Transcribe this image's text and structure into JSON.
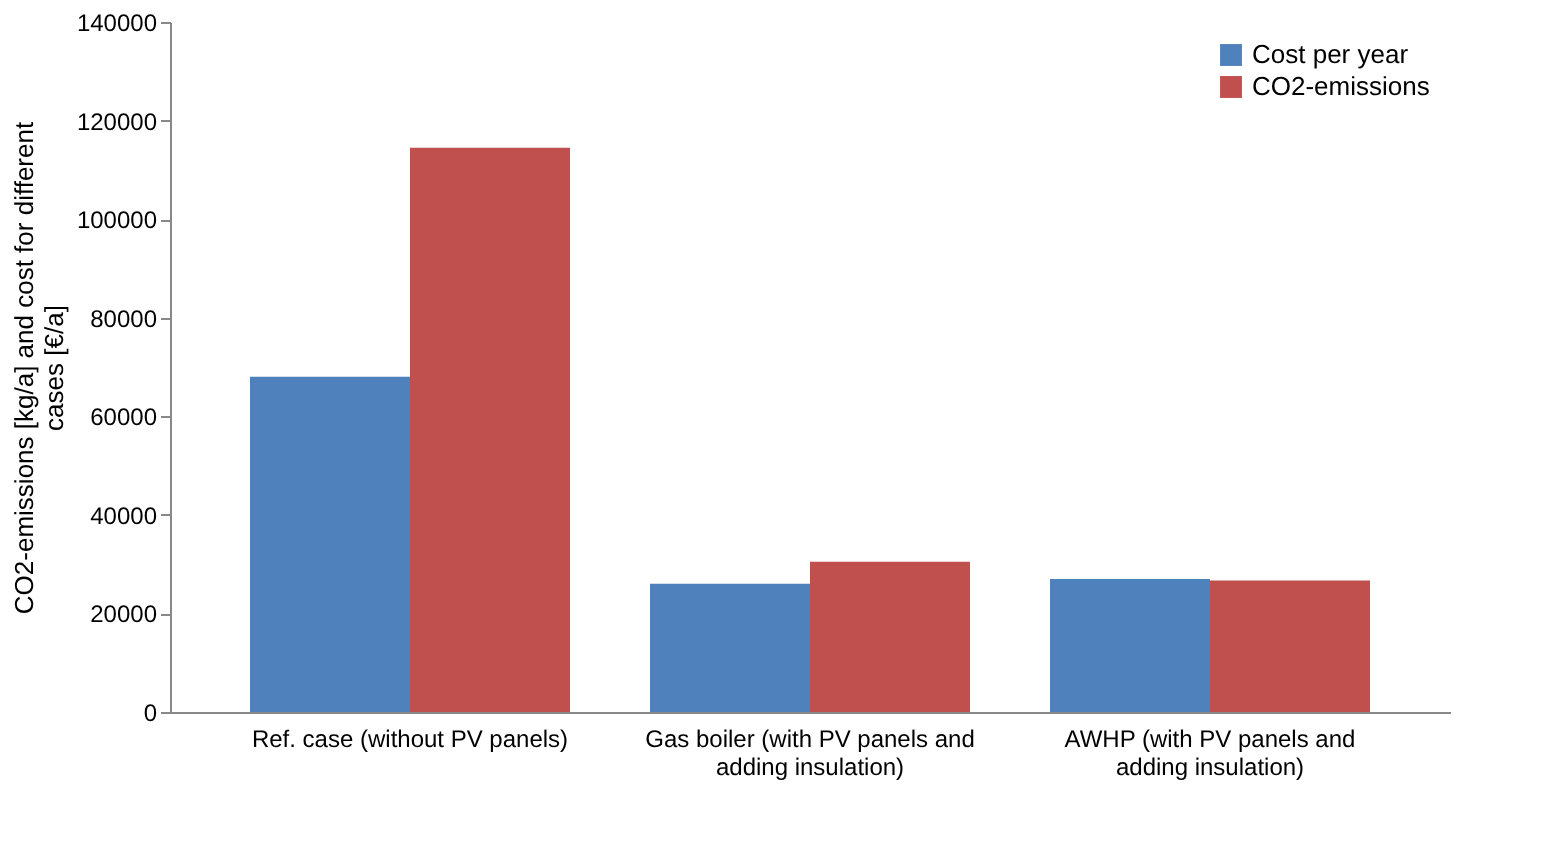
{
  "chart_data": {
    "type": "bar",
    "ylabel": "CO2-emissions [kg/a] and cost for different cases [€/a]",
    "categories": [
      "Ref. case (without PV panels)",
      "Gas boiler (with PV panels and adding insulation)",
      "AWHP (with PV panels and adding insulation)"
    ],
    "series": [
      {
        "name": "Cost per year",
        "color": "#4f81bd",
        "values": [
          68000,
          26000,
          27000
        ]
      },
      {
        "name": "CO2-emissions",
        "color": "#c0504d",
        "values": [
          114500,
          30500,
          26700
        ]
      }
    ],
    "ylim": [
      0,
      140000
    ],
    "yticks": [
      0,
      20000,
      40000,
      60000,
      80000,
      100000,
      120000,
      140000
    ],
    "grid": false,
    "legend": "top right"
  }
}
